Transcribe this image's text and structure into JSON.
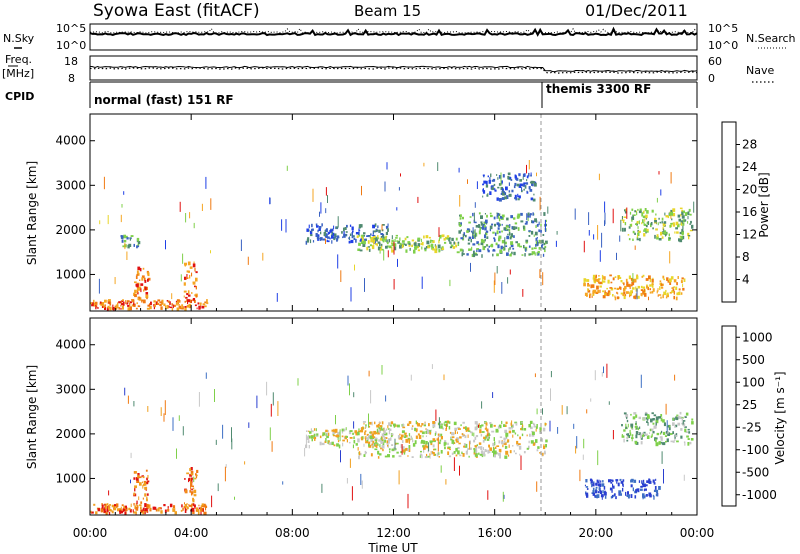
{
  "header": {
    "station": "Syowa East (fitACF)",
    "beam": "Beam 15",
    "date": "01/Dec/2011"
  },
  "strips": {
    "nsky_label": "N.Sky",
    "nsearch_label": "N.Search",
    "nsky_ticks": [
      "10^5",
      "10^0"
    ],
    "nsearch_ticks": [
      "10^5",
      "10^0"
    ],
    "freq_label": "Freq.",
    "freq_unit": "[MHz]",
    "freq_ticks": [
      "18",
      "8"
    ],
    "nave_label": "Nave",
    "nave_ticks": [
      "60",
      "0"
    ],
    "cpid_label": "CPID",
    "cpid_modes": [
      {
        "label": "normal (fast) 151 RF",
        "start_hour": 0.0
      },
      {
        "label": "themis 3300 RF",
        "start_hour": 18.0
      }
    ]
  },
  "chart_data": [
    {
      "type": "heatmap",
      "panel": "power",
      "ylabel": "Slant Range [km]",
      "ylim": [
        180,
        4600
      ],
      "yticks": [
        "1000",
        "2000",
        "3000",
        "4000"
      ],
      "xlim": [
        0,
        24
      ],
      "colorbar": {
        "label": "Power [dB]",
        "ticks": [
          "4",
          "8",
          "12",
          "16",
          "20",
          "24",
          "28"
        ],
        "colors": [
          "#1f3fe6",
          "#3a62c2",
          "#4f8a70",
          "#7fd04a",
          "#e8d62a",
          "#f5a623",
          "#f07a12",
          "#e01010"
        ]
      },
      "features": [
        {
          "t": [
            0.0,
            4.6
          ],
          "r": [
            250,
            450
          ],
          "level": 6,
          "note": "near-range band"
        },
        {
          "t": [
            1.7,
            2.3
          ],
          "r": [
            300,
            1200
          ],
          "level": 6
        },
        {
          "t": [
            3.7,
            4.2
          ],
          "r": [
            300,
            1300
          ],
          "level": 6
        },
        {
          "t": [
            1.2,
            1.9
          ],
          "r": [
            1650,
            1900
          ],
          "level": 2
        },
        {
          "t": [
            8.5,
            11.8
          ],
          "r": [
            1750,
            2150
          ],
          "level": 1
        },
        {
          "t": [
            10.5,
            14.5
          ],
          "r": [
            1550,
            1900
          ],
          "level": 3
        },
        {
          "t": [
            14.5,
            18.0
          ],
          "r": [
            1450,
            2400
          ],
          "level": 2
        },
        {
          "t": [
            15.5,
            17.6
          ],
          "r": [
            2700,
            3300
          ],
          "level": 1
        },
        {
          "t": [
            19.5,
            23.5
          ],
          "r": [
            500,
            1000
          ],
          "level": 5
        },
        {
          "t": [
            21.0,
            23.8
          ],
          "r": [
            1800,
            2500
          ],
          "level": 3
        }
      ]
    },
    {
      "type": "heatmap",
      "panel": "velocity",
      "ylabel": "Slant Range [km]",
      "ylim": [
        180,
        4600
      ],
      "yticks": [
        "1000",
        "2000",
        "3000",
        "4000"
      ],
      "xlim": [
        0,
        24
      ],
      "xticks": [
        "00:00",
        "04:00",
        "08:00",
        "12:00",
        "16:00",
        "20:00",
        "00:00"
      ],
      "xlabel": "Time UT",
      "colorbar": {
        "label": "Velocity [m s⁻¹]",
        "ticks": [
          "1000",
          "500",
          "100",
          "25",
          "-25",
          "-100",
          "-500",
          "-1000"
        ],
        "colors": [
          "#2a3fd0",
          "#3d6fc4",
          "#4f8a70",
          "#7fd04a",
          "#c8c8c8",
          "#f0a020",
          "#f07a12",
          "#e01010"
        ]
      },
      "features": [
        {
          "t": [
            0.0,
            4.6
          ],
          "r": [
            250,
            450
          ],
          "level": 6
        },
        {
          "t": [
            1.7,
            2.3
          ],
          "r": [
            300,
            1200
          ],
          "level": 6
        },
        {
          "t": [
            3.7,
            4.2
          ],
          "r": [
            300,
            1300
          ],
          "level": 6
        },
        {
          "t": [
            8.5,
            11.8
          ],
          "r": [
            1750,
            2150
          ],
          "level": 4
        },
        {
          "t": [
            10.5,
            18.0
          ],
          "r": [
            1500,
            2300
          ],
          "level": 4
        },
        {
          "t": [
            19.5,
            22.5
          ],
          "r": [
            600,
            1000
          ],
          "level": 0
        },
        {
          "t": [
            21.0,
            23.8
          ],
          "r": [
            1800,
            2500
          ],
          "level": 3
        }
      ]
    }
  ]
}
